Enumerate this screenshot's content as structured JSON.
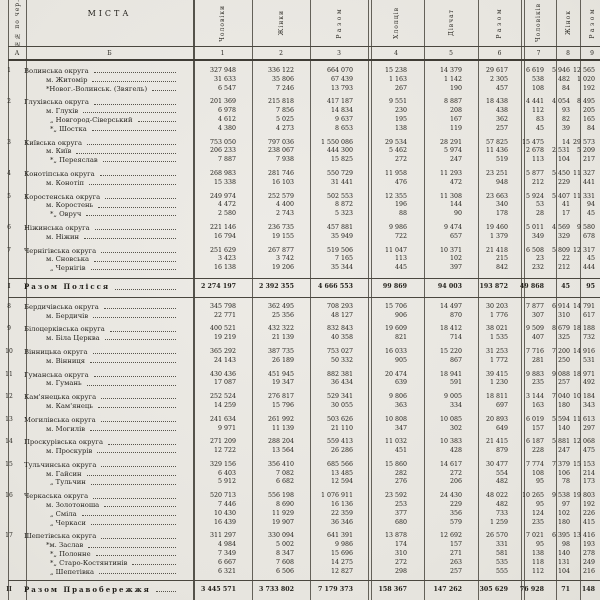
{
  "colors": {
    "paper": "#e9e7e2",
    "ink": "#211f1a",
    "rule": "#55524a"
  },
  "header": {
    "row_number_col": "№№ по чер.",
    "cities_col": "МІСТА",
    "columns": [
      "Чоловіки",
      "Жінки",
      "Разом",
      "Хлопців",
      "Дівчат",
      "Разом",
      "Чоловіків",
      "Жінок",
      "Разом"
    ],
    "col_numbers": [
      "А",
      "Б",
      "1",
      "2",
      "3",
      "4",
      "5",
      "6",
      "7",
      "8",
      "9"
    ]
  },
  "groups": [
    {
      "num": "1",
      "rows": [
        {
          "name": "Волинська округа",
          "indent": 0,
          "values": [
            "327 948",
            "336 122",
            "664 070",
            "15 238",
            "14 379",
            "29 617",
            "6 619",
            "5 946",
            "12 565"
          ]
        },
        {
          "name": "м. Житомір",
          "indent": 1,
          "values": [
            "31 633",
            "35 806",
            "67 439",
            "1 163",
            "1 142",
            "2 305",
            "538",
            "482",
            "1 020"
          ]
        },
        {
          "name": "*Новог.-Волинськ. (Звягель)",
          "indent": 1,
          "values": [
            "6 547",
            "7 246",
            "13 793",
            "267",
            "190",
            "457",
            "108",
            "84",
            "192"
          ]
        }
      ]
    },
    {
      "num": "2",
      "rows": [
        {
          "name": "Глухівська округа",
          "indent": 0,
          "values": [
            "201 369",
            "215 818",
            "417 187",
            "9 551",
            "8 887",
            "18 438",
            "4 441",
            "4 054",
            "8 495"
          ]
        },
        {
          "name": "м. Глухів",
          "indent": 1,
          "values": [
            "6 978",
            "7 856",
            "14 834",
            "230",
            "208",
            "438",
            "112",
            "93",
            "205"
          ]
        },
        {
          "name": "„ Новгород-Сіверський",
          "indent": 2,
          "values": [
            "4 612",
            "5 025",
            "9 637",
            "195",
            "167",
            "362",
            "83",
            "82",
            "165"
          ]
        },
        {
          "name": "*„ Шостка",
          "indent": 2,
          "values": [
            "4 380",
            "4 273",
            "8 653",
            "138",
            "119",
            "257",
            "45",
            "39",
            "84"
          ]
        }
      ]
    },
    {
      "num": "3",
      "rows": [
        {
          "name": "Київська округа",
          "indent": 0,
          "values": [
            "753 050",
            "797 036",
            "1 550 086",
            "29 534",
            "28 291",
            "57 825",
            "15 475",
            "14 098",
            "29 573"
          ]
        },
        {
          "name": "м. Київ",
          "indent": 1,
          "values": [
            "206 233",
            "238 067",
            "444 300",
            "5 462",
            "5 974",
            "11 436",
            "2 678",
            "2 531",
            "5 209"
          ]
        },
        {
          "name": "*„ Переяслав",
          "indent": 2,
          "values": [
            "7 887",
            "7 938",
            "15 825",
            "272",
            "247",
            "519",
            "113",
            "104",
            "217"
          ]
        }
      ]
    },
    {
      "num": "4",
      "rows": [
        {
          "name": "Конотіпська округа",
          "indent": 0,
          "values": [
            "268 983",
            "281 746",
            "550 729",
            "11 958",
            "11 293",
            "23 251",
            "5 877",
            "5 450",
            "11 327"
          ]
        },
        {
          "name": "м. Конотіп",
          "indent": 1,
          "values": [
            "15 338",
            "16 103",
            "31 441",
            "476",
            "472",
            "948",
            "212",
            "229",
            "441"
          ]
        }
      ]
    },
    {
      "num": "5",
      "rows": [
        {
          "name": "Коростенська округа",
          "indent": 0,
          "values": [
            "249 974",
            "252 579",
            "502 553",
            "12 355",
            "11 308",
            "23 663",
            "5 924",
            "5 407",
            "11 331"
          ]
        },
        {
          "name": "м. Коростень",
          "indent": 1,
          "values": [
            "4 472",
            "4 400",
            "8 872",
            "196",
            "144",
            "340",
            "53",
            "41",
            "94"
          ]
        },
        {
          "name": "*„ Овруч",
          "indent": 2,
          "values": [
            "2 580",
            "2 743",
            "5 323",
            "88",
            "90",
            "178",
            "28",
            "17",
            "45"
          ]
        }
      ]
    },
    {
      "num": "6",
      "rows": [
        {
          "name": "Ніжинська округа",
          "indent": 0,
          "values": [
            "221 146",
            "236 735",
            "457 881",
            "9 986",
            "9 474",
            "19 460",
            "5 011",
            "4 569",
            "9 580"
          ]
        },
        {
          "name": "м. Ніжин",
          "indent": 1,
          "values": [
            "16 794",
            "19 155",
            "35 949",
            "722",
            "657",
            "1 379",
            "349",
            "329",
            "678"
          ]
        }
      ]
    },
    {
      "num": "7",
      "rows": [
        {
          "name": "Чернігівська округа",
          "indent": 0,
          "values": [
            "251 629",
            "267 877",
            "519 506",
            "11 047",
            "10 371",
            "21 418",
            "6 508",
            "5 809",
            "12 317"
          ]
        },
        {
          "name": "м. Сновська",
          "indent": 1,
          "values": [
            "3 423",
            "3 742",
            "7 165",
            "113",
            "102",
            "215",
            "23",
            "22",
            "45"
          ]
        },
        {
          "name": "„ Чернігів",
          "indent": 2,
          "values": [
            "16 138",
            "19 206",
            "35 344",
            "445",
            "397",
            "842",
            "232",
            "212",
            "444"
          ]
        }
      ]
    },
    {
      "num": "І",
      "total": true,
      "rows": [
        {
          "name": "Разом Полісся",
          "indent": 0,
          "values": [
            "2 274 197",
            "2 392 355",
            "4 666 553",
            "99 869",
            "94 003",
            "193 872",
            "49 868",
            "45 294",
            "95 162"
          ]
        }
      ]
    },
    {
      "num": "8",
      "rows": [
        {
          "name": "Бердичівська округа",
          "indent": 0,
          "values": [
            "345 798",
            "362 495",
            "708 293",
            "15 706",
            "14 497",
            "30 203",
            "7 877",
            "6 914",
            "14 791"
          ]
        },
        {
          "name": "м. Бердичів",
          "indent": 1,
          "values": [
            "22 771",
            "25 356",
            "48 127",
            "906",
            "870",
            "1 776",
            "307",
            "310",
            "617"
          ]
        }
      ]
    },
    {
      "num": "9",
      "rows": [
        {
          "name": "Білоцерківська округа",
          "indent": 0,
          "values": [
            "400 521",
            "432 322",
            "832 843",
            "19 609",
            "18 412",
            "38 021",
            "9 509",
            "8 679",
            "18 188"
          ]
        },
        {
          "name": "м. Біла Церква",
          "indent": 1,
          "values": [
            "19 219",
            "21 139",
            "40 358",
            "821",
            "714",
            "1 535",
            "407",
            "325",
            "732"
          ]
        }
      ]
    },
    {
      "num": "10",
      "rows": [
        {
          "name": "Вінницька округа",
          "indent": 0,
          "values": [
            "365 292",
            "387 735",
            "753 027",
            "16 033",
            "15 220",
            "31 253",
            "7 716",
            "7 200",
            "14 916"
          ]
        },
        {
          "name": "м. Вінниця",
          "indent": 1,
          "values": [
            "24 143",
            "26 189",
            "50 332",
            "905",
            "867",
            "1 772",
            "281",
            "250",
            "531"
          ]
        }
      ]
    },
    {
      "num": "11",
      "rows": [
        {
          "name": "Гуманська округа",
          "indent": 0,
          "values": [
            "430 436",
            "451 945",
            "882 381",
            "20 474",
            "18 941",
            "39 415",
            "9 883",
            "9 088",
            "18 971"
          ]
        },
        {
          "name": "м. Гумань",
          "indent": 1,
          "values": [
            "17 087",
            "19 347",
            "36 434",
            "639",
            "591",
            "1 230",
            "235",
            "257",
            "492"
          ]
        }
      ]
    },
    {
      "num": "12",
      "rows": [
        {
          "name": "Кам'янецька округа",
          "indent": 0,
          "values": [
            "252 524",
            "276 817",
            "529 341",
            "9 806",
            "9 005",
            "18 811",
            "3 144",
            "7 040",
            "10 184"
          ]
        },
        {
          "name": "м. Кам'янець",
          "indent": 1,
          "values": [
            "14 259",
            "15 796",
            "30 055",
            "363",
            "334",
            "697",
            "163",
            "180",
            "343"
          ]
        }
      ]
    },
    {
      "num": "13",
      "rows": [
        {
          "name": "Могилівська округа",
          "indent": 0,
          "values": [
            "241 634",
            "261 992",
            "503 626",
            "10 808",
            "10 085",
            "20 893",
            "6 019",
            "5 594",
            "11 613"
          ]
        },
        {
          "name": "м. Могилів",
          "indent": 1,
          "values": [
            "9 971",
            "11 139",
            "21 110",
            "347",
            "302",
            "649",
            "157",
            "140",
            "297"
          ]
        }
      ]
    },
    {
      "num": "14",
      "rows": [
        {
          "name": "Проскурівська округа",
          "indent": 0,
          "values": [
            "271 209",
            "288 204",
            "559 413",
            "11 032",
            "10 383",
            "21 415",
            "6 187",
            "5 881",
            "12 068"
          ]
        },
        {
          "name": "м. Проскурів",
          "indent": 1,
          "values": [
            "12 722",
            "13 564",
            "26 286",
            "451",
            "428",
            "879",
            "228",
            "247",
            "475"
          ]
        }
      ]
    },
    {
      "num": "15",
      "rows": [
        {
          "name": "Тульчинська округа",
          "indent": 0,
          "values": [
            "329 156",
            "356 410",
            "685 566",
            "15 860",
            "14 617",
            "30 477",
            "7 774",
            "7 379",
            "15 153"
          ]
        },
        {
          "name": "м. Гайсин",
          "indent": 1,
          "values": [
            "6 403",
            "7 082",
            "13 485",
            "282",
            "272",
            "554",
            "108",
            "106",
            "214"
          ]
        },
        {
          "name": "„ Тульчин",
          "indent": 2,
          "values": [
            "5 912",
            "6 682",
            "12 594",
            "276",
            "206",
            "482",
            "95",
            "78",
            "173"
          ]
        }
      ]
    },
    {
      "num": "16",
      "rows": [
        {
          "name": "Черкаська округа",
          "indent": 0,
          "values": [
            "520 713",
            "556 198",
            "1 076 911",
            "23 592",
            "24 430",
            "48 022",
            "10 265",
            "9 538",
            "19 803"
          ]
        },
        {
          "name": "м. Золотоноша",
          "indent": 1,
          "values": [
            "7 446",
            "8 690",
            "16 136",
            "253",
            "229",
            "482",
            "95",
            "97",
            "192"
          ]
        },
        {
          "name": "„ Сміла",
          "indent": 2,
          "values": [
            "10 430",
            "11 929",
            "22 359",
            "377",
            "356",
            "733",
            "124",
            "102",
            "226"
          ]
        },
        {
          "name": "„ Черкаси",
          "indent": 2,
          "values": [
            "16 439",
            "19 907",
            "36 346",
            "680",
            "579",
            "1 259",
            "235",
            "180",
            "415"
          ]
        }
      ]
    },
    {
      "num": "17",
      "rows": [
        {
          "name": "Шепетівська округа",
          "indent": 0,
          "values": [
            "311 297",
            "330 094",
            "641 391",
            "13 878",
            "12 692",
            "26 570",
            "7 021",
            "6 395",
            "13 416"
          ]
        },
        {
          "name": "*м. Заслав",
          "indent": 1,
          "values": [
            "4 984",
            "5 002",
            "9 986",
            "174",
            "157",
            "331",
            "95",
            "98",
            "193"
          ]
        },
        {
          "name": "*„ Полонне",
          "indent": 2,
          "values": [
            "7 349",
            "8 347",
            "15 696",
            "310",
            "271",
            "581",
            "138",
            "140",
            "278"
          ]
        },
        {
          "name": "*„ Старо-Костянтинів",
          "indent": 2,
          "values": [
            "6 667",
            "7 608",
            "14 275",
            "272",
            "263",
            "535",
            "118",
            "131",
            "249"
          ]
        },
        {
          "name": "„ Шепетівка",
          "indent": 2,
          "values": [
            "6 321",
            "6 506",
            "12 827",
            "298",
            "257",
            "555",
            "112",
            "104",
            "216"
          ]
        }
      ]
    },
    {
      "num": "ІІ",
      "total": true,
      "bottom": true,
      "rows": [
        {
          "name": "Разом Правобережжя",
          "indent": 0,
          "values": [
            "3 445 571",
            "3 733 802",
            "7 179 373",
            "158 367",
            "147 262",
            "305 629",
            "76 928",
            "71 375",
            "148 303"
          ]
        }
      ]
    }
  ]
}
